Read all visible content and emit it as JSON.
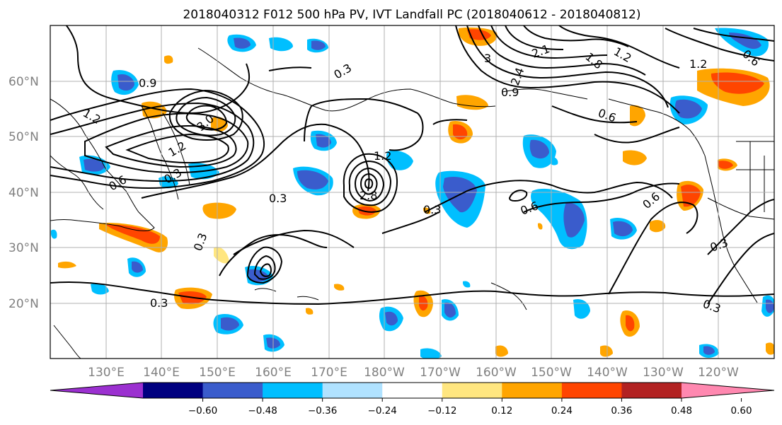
{
  "title": "2018040312 F012 500 hPa PV, IVT Landfall PC (2018040612 - 2018040812)",
  "lat_labels": [
    "60°N",
    "50°N",
    "40°N",
    "30°N",
    "20°N"
  ],
  "lon_labels": [
    "130°E",
    "140°E",
    "150°E",
    "160°E",
    "170°E",
    "180°W",
    "170°W",
    "160°W",
    "150°W",
    "140°W",
    "130°W",
    "120°W"
  ],
  "colorbar": {
    "ticks": [
      "−0.60",
      "−0.48",
      "−0.36",
      "−0.24",
      "−0.12",
      "0.12",
      "0.24",
      "0.36",
      "0.48",
      "0.60"
    ],
    "colors": [
      "#9b30d0",
      "#000080",
      "#3a5ccc",
      "#00bfff",
      "#b0e2ff",
      "#ffffff",
      "#ffe680",
      "#ffa500",
      "#ff4500",
      "#b22222",
      "#ff88b0"
    ]
  },
  "contour_labels": [
    "0.9",
    "1.2",
    "3.0",
    "0.6",
    "0.3",
    "1.2",
    "2.8",
    "0.3",
    "0.3",
    "0.3",
    "0.3",
    "0.3",
    "0.6",
    "0.6",
    "0.3",
    "0.3",
    "2.1",
    "1.8",
    "1.2",
    "0.9",
    "1.2",
    "0.6",
    "2.4",
    "3",
    "1.2",
    "0.6"
  ]
}
